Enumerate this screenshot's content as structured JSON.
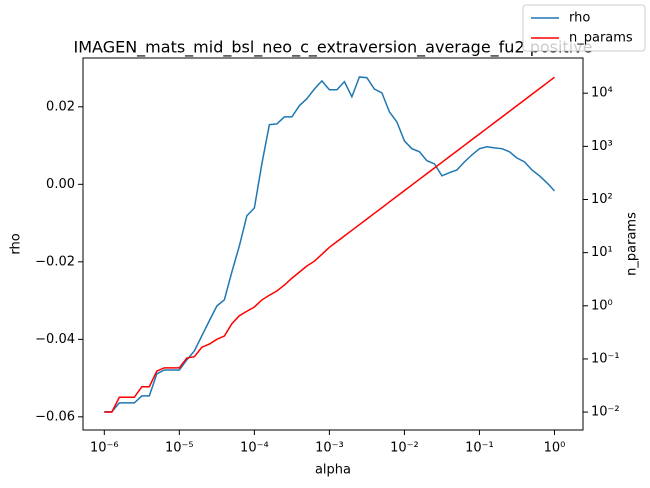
{
  "chart_data": {
    "type": "line",
    "title": "IMAGEN_mats_mid_bsl_neo_c_extraversion_average_fu2 positive",
    "x_label": "alpha",
    "y_label": "rho",
    "y2_label": "n_params",
    "x_scale": "log",
    "y2_scale": "log",
    "legend": "upper right",
    "x": [
      1e-06,
      1.259e-06,
      1.585e-06,
      1.995e-06,
      2.512e-06,
      3.162e-06,
      3.981e-06,
      5.012e-06,
      6.31e-06,
      7.943e-06,
      1e-05,
      1.259e-05,
      1.585e-05,
      1.995e-05,
      2.512e-05,
      3.162e-05,
      3.981e-05,
      5.012e-05,
      6.31e-05,
      7.943e-05,
      0.0001,
      0.0001259,
      0.0001585,
      0.0001995,
      0.0002512,
      0.0003162,
      0.0003981,
      0.0005012,
      0.000631,
      0.0007943,
      0.001,
      0.001259,
      0.001585,
      0.001995,
      0.002512,
      0.003162,
      0.003981,
      0.005012,
      0.00631,
      0.007943,
      0.01,
      0.01259,
      0.01585,
      0.01995,
      0.02512,
      0.03162,
      0.03981,
      0.05012,
      0.0631,
      0.07943,
      0.1,
      0.1259,
      0.1585,
      0.1995,
      0.2512,
      0.3162,
      0.3981,
      0.5012,
      0.631,
      0.7943,
      1
    ],
    "series": [
      {
        "name": "rho",
        "color": "#1f77b4",
        "axis": "y",
        "values": [
          -0.0587,
          -0.0587,
          -0.0564,
          -0.0564,
          -0.0564,
          -0.0546,
          -0.0546,
          -0.0489,
          -0.0479,
          -0.0479,
          -0.0479,
          -0.0453,
          -0.043,
          -0.0391,
          -0.0352,
          -0.0314,
          -0.0298,
          -0.0226,
          -0.0159,
          -0.0081,
          -0.0061,
          0.0053,
          0.0154,
          0.0156,
          0.0174,
          0.0174,
          0.0203,
          0.0221,
          0.0246,
          0.0267,
          0.0244,
          0.0244,
          0.0265,
          0.0226,
          0.0277,
          0.0275,
          0.0246,
          0.0236,
          0.0187,
          0.0161,
          0.0112,
          0.0092,
          0.0084,
          0.0061,
          0.0053,
          0.0022,
          0.003,
          0.0037,
          0.0058,
          0.0076,
          0.0092,
          0.0097,
          0.0094,
          0.0092,
          0.0084,
          0.0068,
          0.0058,
          0.0037,
          0.0022,
          0.0004,
          -0.0017
        ]
      },
      {
        "name": "n_params",
        "color": "#ff0000",
        "axis": "y2",
        "values": [
          0.01,
          0.01,
          0.019,
          0.019,
          0.019,
          0.03,
          0.03,
          0.059,
          0.068,
          0.068,
          0.068,
          0.104,
          0.11,
          0.166,
          0.19,
          0.234,
          0.27,
          0.46,
          0.65,
          0.79,
          0.95,
          1.29,
          1.58,
          1.9,
          2.45,
          3.3,
          4.3,
          5.6,
          6.9,
          9.3,
          12.6,
          16.1,
          20.6,
          26.3,
          33.6,
          43,
          55,
          70,
          90,
          115,
          147,
          188,
          240,
          307,
          392,
          501,
          641,
          819,
          1047,
          1340,
          1711,
          2188,
          2799,
          3573,
          4571,
          5848,
          7464,
          9550,
          12218,
          15596,
          19953
        ]
      }
    ],
    "xlim": [
      5.2e-07,
      2.4
    ],
    "xticks": [
      {
        "value": 1e-06,
        "label": "10⁻⁶"
      },
      {
        "value": 1e-05,
        "label": "10⁻⁵"
      },
      {
        "value": 0.0001,
        "label": "10⁻⁴"
      },
      {
        "value": 0.001,
        "label": "10⁻³"
      },
      {
        "value": 0.01,
        "label": "10⁻²"
      },
      {
        "value": 0.1,
        "label": "10⁻¹"
      },
      {
        "value": 1,
        "label": "10⁰"
      }
    ],
    "ylim": [
      -0.0634,
      0.0326
    ],
    "yticks": [
      {
        "value": -0.06,
        "label": "−0.06"
      },
      {
        "value": -0.04,
        "label": "−0.04"
      },
      {
        "value": -0.02,
        "label": "−0.02"
      },
      {
        "value": 0,
        "label": "0.00"
      },
      0.02
    ],
    "y2lim": [
      0.0046,
      46000
    ],
    "y2ticks": [
      {
        "value": 0.01,
        "label": "10⁻²"
      },
      {
        "value": 0.1,
        "label": "10⁻¹"
      },
      {
        "value": 1,
        "label": "10⁰"
      },
      {
        "value": 10,
        "label": "10¹"
      },
      {
        "value": 100,
        "label": "10²"
      },
      {
        "value": 1000,
        "label": "10³"
      },
      {
        "value": 10000,
        "label": "10⁴"
      }
    ]
  }
}
